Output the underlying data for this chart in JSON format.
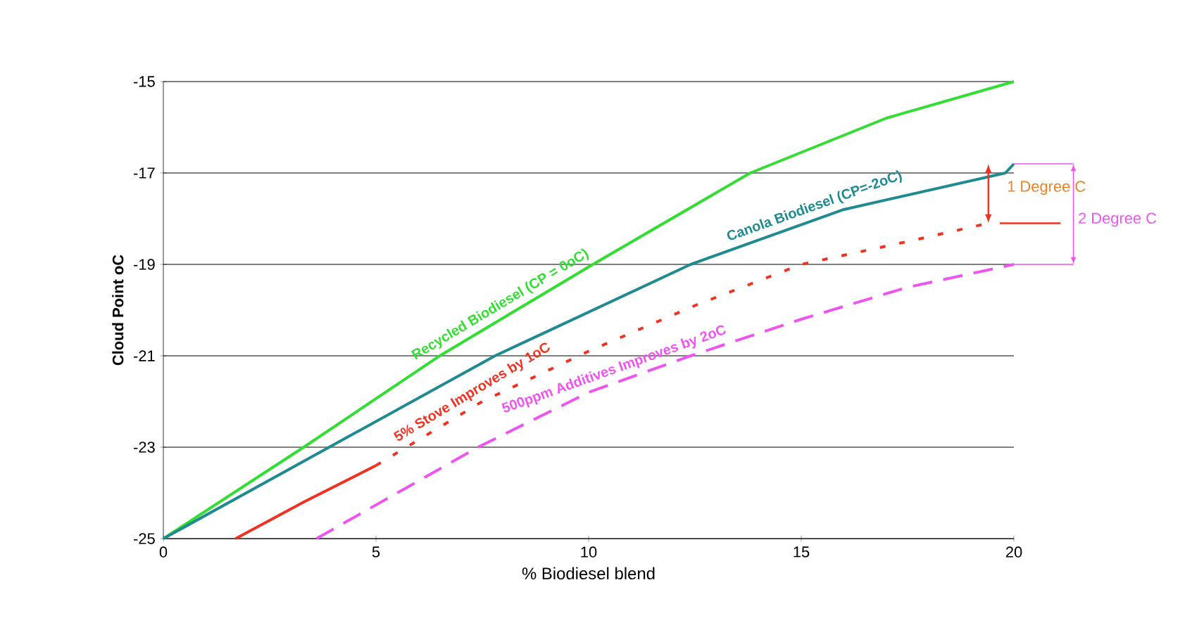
{
  "chart_data": {
    "type": "line",
    "xlabel": "% Biodiesel blend",
    "ylabel": "Cloud Point oC",
    "xlim": [
      0,
      20
    ],
    "ylim": [
      -25,
      -15
    ],
    "xticks": [
      0,
      5,
      10,
      15,
      20
    ],
    "yticks": [
      -25,
      -23,
      -21,
      -19,
      -17,
      -15
    ],
    "grid": "y",
    "marker": "none",
    "series": [
      {
        "name": "Recycled Biodiesel (CP = 0oC)",
        "color": "#33dd33",
        "line_style": "solid",
        "x": [
          0,
          3.3,
          6.5,
          10.1,
          13.8,
          17,
          20
        ],
        "values": [
          -25,
          -23,
          -21,
          -19,
          -17,
          -15.8,
          -15
        ]
      },
      {
        "name": "Canola Biodiesel (CP=-2oC)",
        "color": "#1f8a8f",
        "line_style": "solid",
        "x": [
          0,
          3.9,
          7.8,
          12.4,
          16,
          19.8,
          20
        ],
        "values": [
          -25,
          -23,
          -21,
          -19,
          -17.8,
          -17,
          -16.8
        ]
      },
      {
        "color": "#ee3322",
        "line_style": "solid",
        "x": [
          1.7,
          3.3,
          5
        ],
        "values": [
          -25,
          -24.2,
          -23.4
        ]
      },
      {
        "name": "5% Stove Improves by 1oC",
        "color": "#ee3322",
        "line_style": "dotted",
        "x": [
          5,
          7.5,
          10,
          12.5,
          15,
          17.5,
          19.4
        ],
        "values": [
          -23.4,
          -22,
          -20.9,
          -19.9,
          -19,
          -18.5,
          -18.1
        ]
      },
      {
        "name": "500ppm Additives Improves by 2oC",
        "color": "#ee55ee",
        "line_style": "dashed",
        "x": [
          3.6,
          7.4,
          10,
          12.4,
          15,
          17.5,
          20
        ],
        "values": [
          -25,
          -23,
          -21.8,
          -21,
          -20.2,
          -19.5,
          -19
        ]
      }
    ],
    "annotations": [
      "1 Degree C",
      "2 Degree C"
    ]
  }
}
